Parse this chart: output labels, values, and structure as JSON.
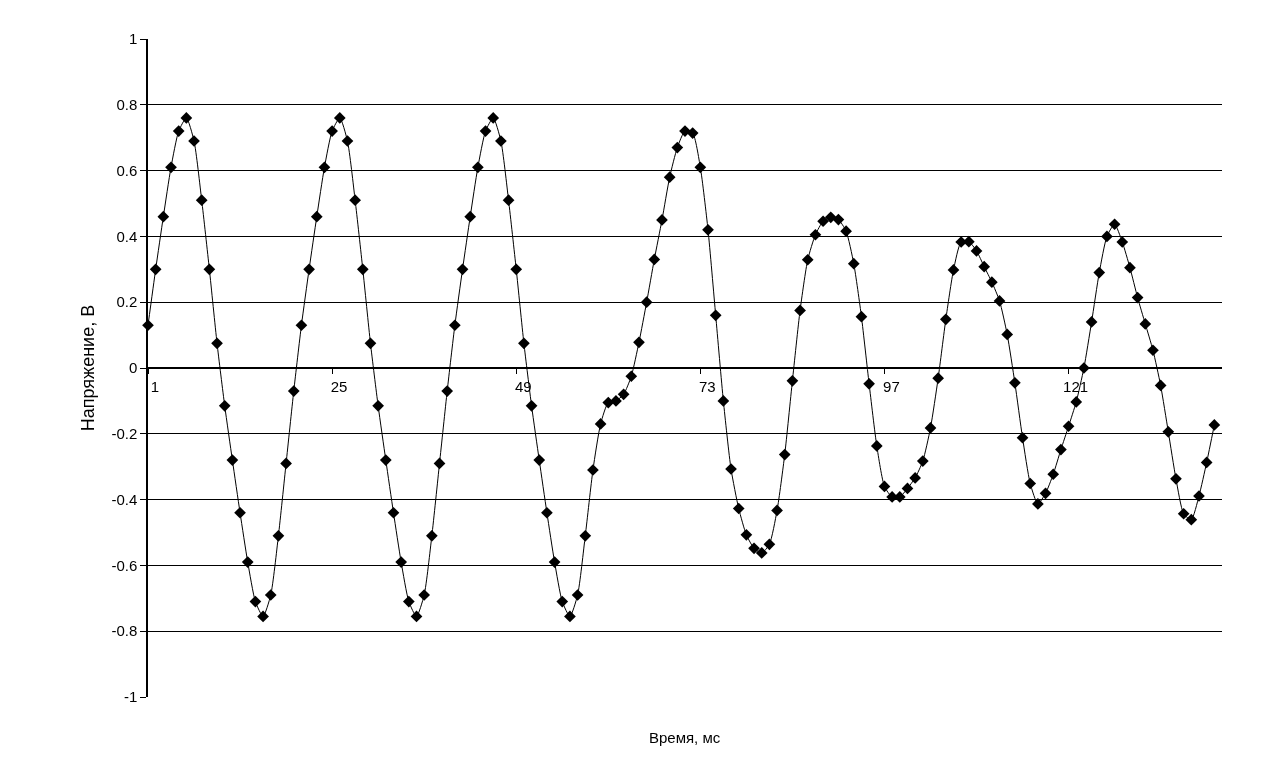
{
  "chart_data": {
    "type": "line",
    "xlabel": "Время, мс",
    "ylabel": "Напряжение, В",
    "x": [
      1,
      2,
      3,
      4,
      5,
      6,
      7,
      8,
      9,
      10,
      11,
      12,
      13,
      14,
      15,
      16,
      17,
      18,
      19,
      20,
      21,
      22,
      23,
      24,
      25,
      26,
      27,
      28,
      29,
      30,
      31,
      32,
      33,
      34,
      35,
      36,
      37,
      38,
      39,
      40,
      41,
      42,
      43,
      44,
      45,
      46,
      47,
      48,
      49,
      50,
      51,
      52,
      53,
      54,
      55,
      56,
      57,
      58,
      59,
      60,
      61,
      62,
      63,
      64,
      65,
      66,
      67,
      68,
      69,
      70,
      71,
      72,
      73,
      74,
      75,
      76,
      77,
      78,
      79,
      80,
      81,
      82,
      83,
      84,
      85,
      86,
      87,
      88,
      89,
      90,
      91,
      92,
      93,
      94,
      95,
      96,
      97,
      98,
      99,
      100,
      101,
      102,
      103,
      104,
      105,
      106,
      107,
      108,
      109,
      110,
      111,
      112,
      113,
      114,
      115,
      116,
      117,
      118,
      119,
      120,
      121,
      122,
      123,
      124,
      125,
      126,
      127,
      128,
      129,
      130,
      131,
      132,
      133,
      134,
      135,
      136,
      137,
      138,
      139,
      140
    ],
    "series": [
      {
        "color": "#000000",
        "values": [
          0.13,
          0.3,
          0.46,
          0.61,
          0.72,
          0.76,
          0.69,
          0.51,
          0.3,
          0.075,
          -0.115,
          -0.28,
          -0.44,
          -0.59,
          -0.71,
          -0.755,
          -0.69,
          -0.51,
          -0.29,
          -0.07,
          0.13,
          0.3,
          0.46,
          0.61,
          0.72,
          0.76,
          0.69,
          0.51,
          0.3,
          0.075,
          -0.115,
          -0.28,
          -0.44,
          -0.59,
          -0.71,
          -0.755,
          -0.69,
          -0.51,
          -0.29,
          -0.07,
          0.13,
          0.3,
          0.46,
          0.61,
          0.72,
          0.76,
          0.69,
          0.51,
          0.3,
          0.075,
          -0.115,
          -0.28,
          -0.44,
          -0.59,
          -0.71,
          -0.755,
          -0.69,
          -0.51,
          -0.31,
          -0.17,
          -0.105,
          -0.1,
          -0.08,
          -0.025,
          0.078,
          0.2,
          0.33,
          0.45,
          0.58,
          0.67,
          0.72,
          0.714,
          0.61,
          0.42,
          0.16,
          -0.1,
          -0.307,
          -0.427,
          -0.507,
          -0.548,
          -0.562,
          -0.536,
          -0.433,
          -0.263,
          -0.039,
          0.175,
          0.329,
          0.405,
          0.446,
          0.458,
          0.451,
          0.416,
          0.317,
          0.156,
          -0.048,
          -0.237,
          -0.36,
          -0.392,
          -0.392,
          -0.366,
          -0.334,
          -0.283,
          -0.182,
          -0.031,
          0.148,
          0.298,
          0.383,
          0.384,
          0.356,
          0.308,
          0.261,
          0.204,
          0.102,
          -0.045,
          -0.212,
          -0.351,
          -0.413,
          -0.381,
          -0.323,
          -0.248,
          -0.177,
          -0.103,
          0,
          0.14,
          0.29,
          0.4,
          0.437,
          0.383,
          0.305,
          0.214,
          0.134,
          0.054,
          -0.053,
          -0.194,
          -0.337,
          -0.443,
          -0.461,
          -0.389,
          -0.287,
          -0.173
        ]
      }
    ],
    "xlim": [
      1,
      141
    ],
    "xticks": [
      1,
      25,
      49,
      73,
      97,
      121
    ],
    "ylim": [
      -1,
      1
    ],
    "yticks": [
      -1,
      -0.8,
      -0.6,
      -0.4,
      -0.2,
      0,
      0.2,
      0.4,
      0.6,
      0.8,
      1
    ],
    "grid": "y",
    "marker": "diamond",
    "line_style": "solid"
  }
}
